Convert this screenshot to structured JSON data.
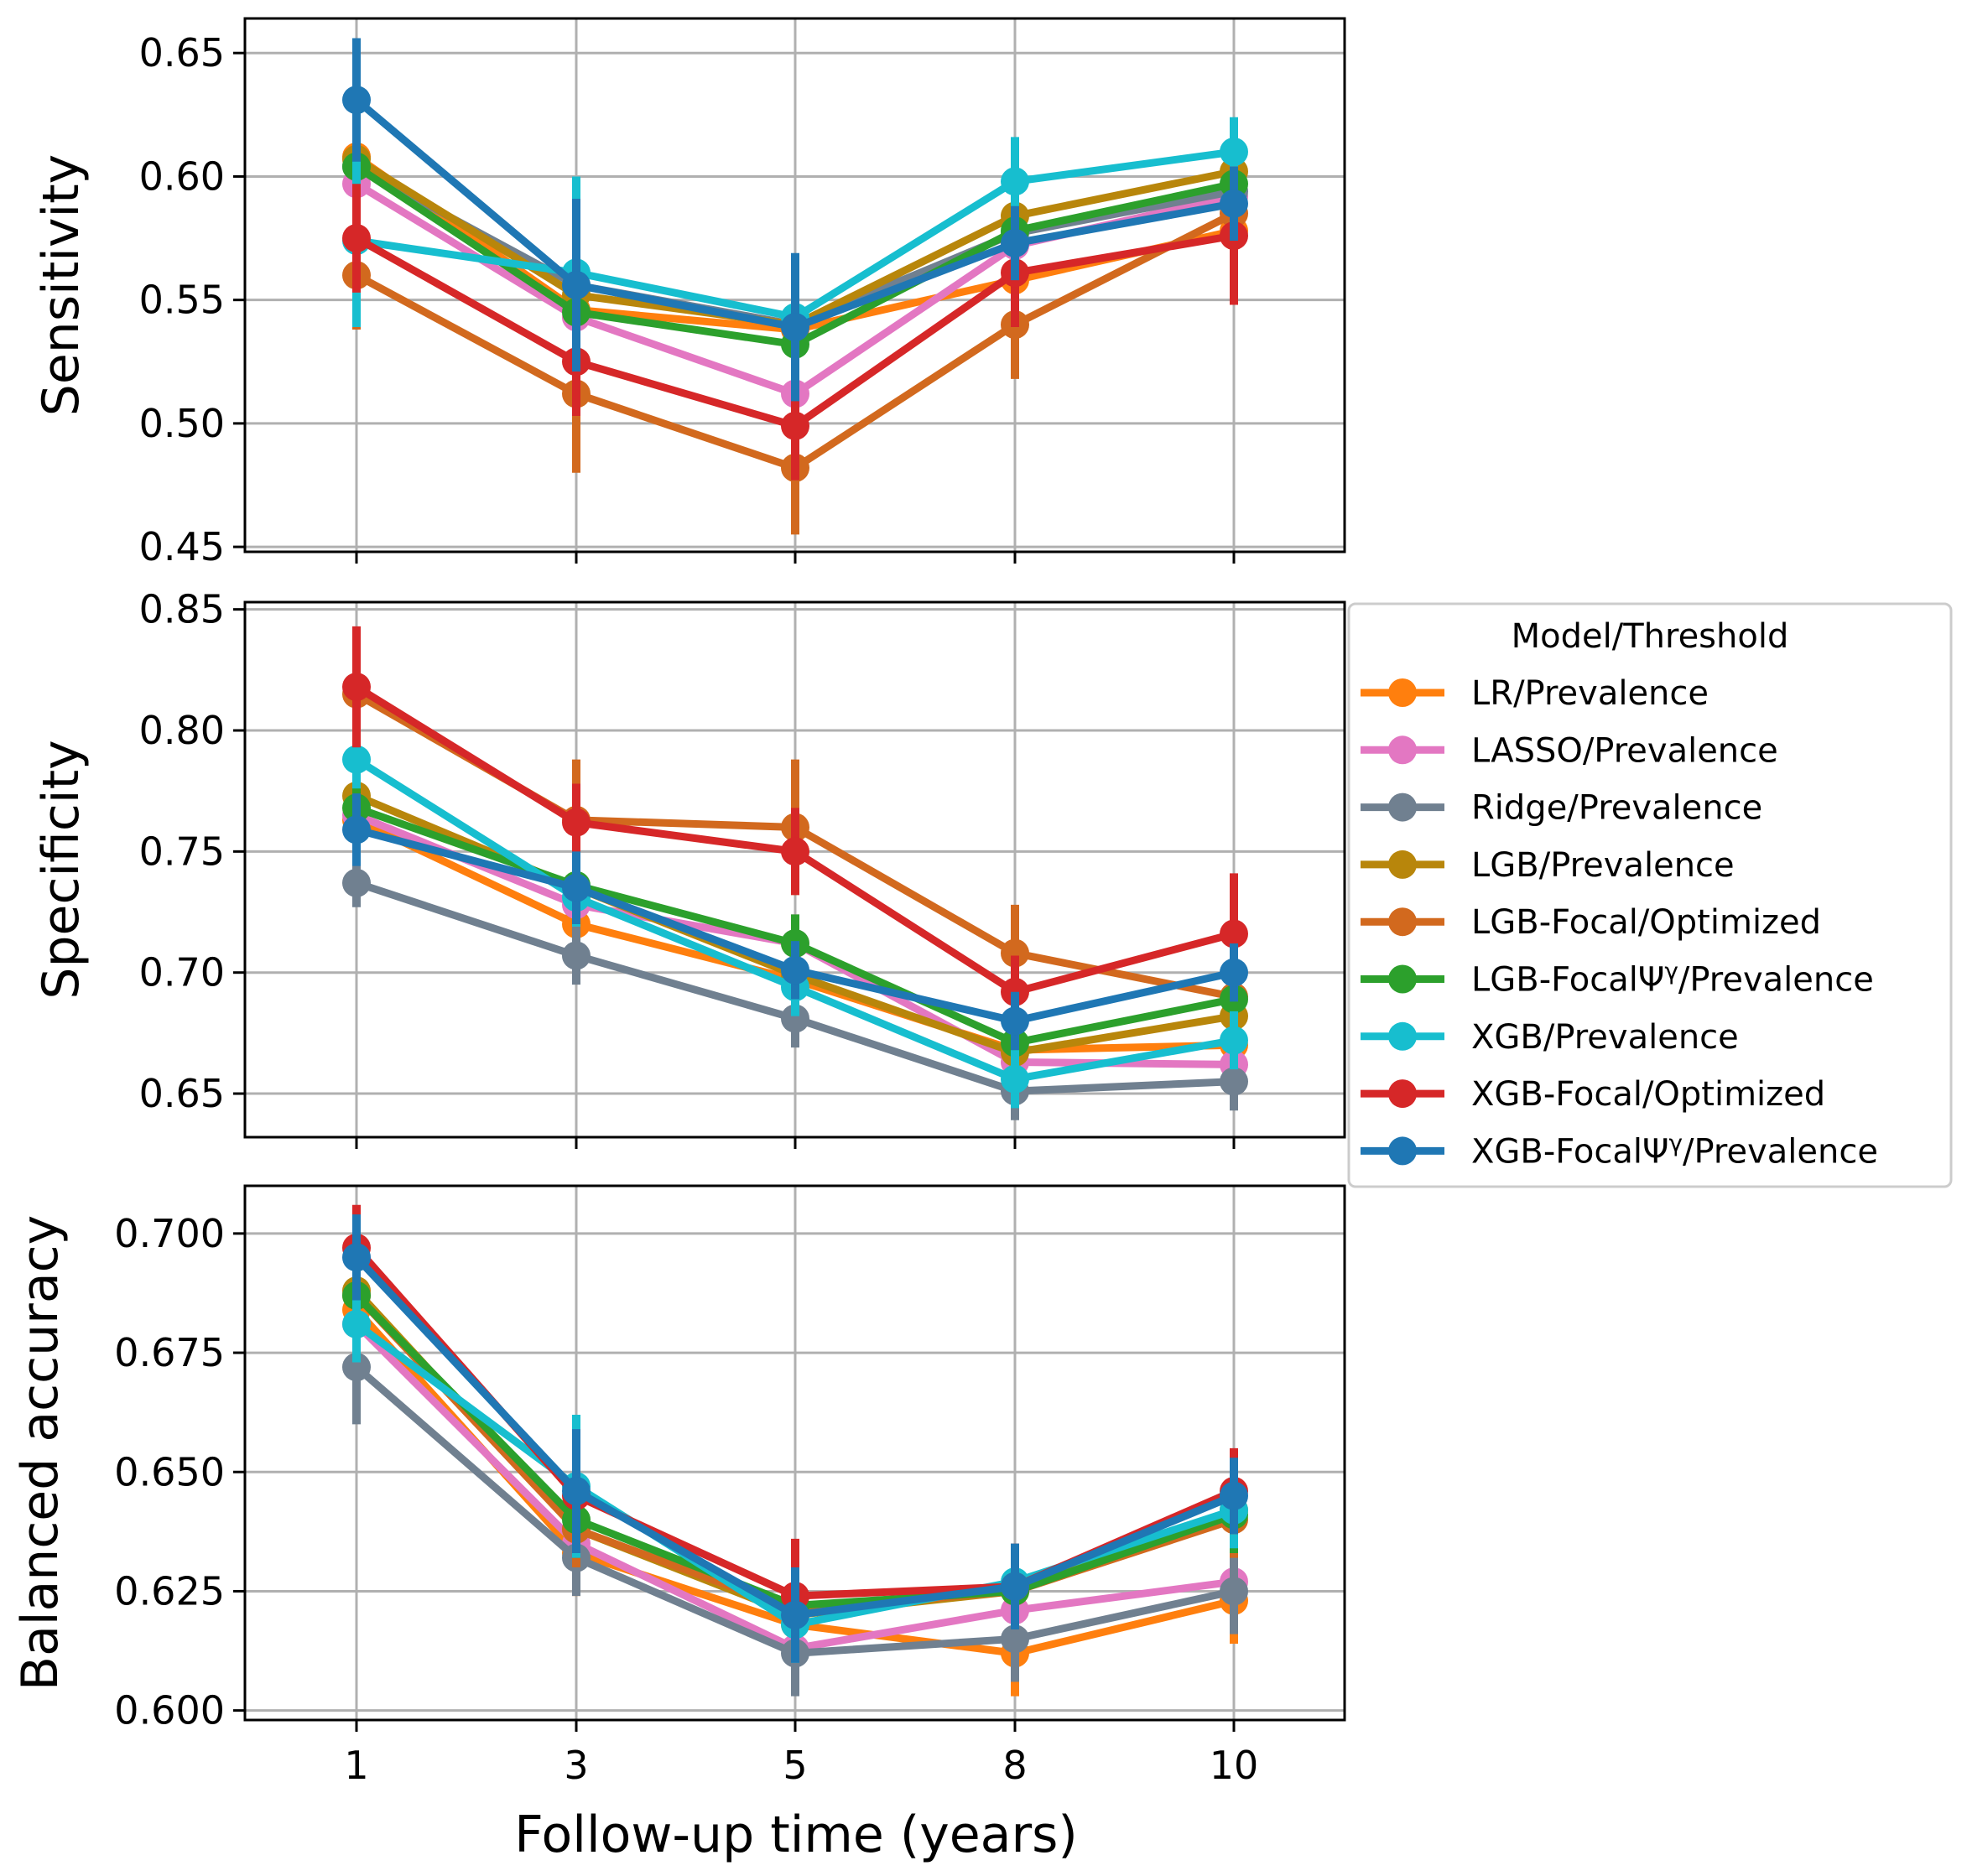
{
  "chart_data": {
    "type": "line",
    "xlabel": "Follow-up time (years)",
    "x": [
      1,
      3,
      5,
      8,
      10
    ],
    "x_tick_labels": [
      "1",
      "3",
      "5",
      "8",
      "10"
    ],
    "legend": {
      "title": "Model/Threshold",
      "placement": "right of middle panel",
      "entries": [
        "LR/Prevalence",
        "LASSO/Prevalence",
        "Ridge/Prevalence",
        "LGB/Prevalence",
        "LGB-Focal/Optimized",
        "LGB-FocalΨ^γ/Prevalence",
        "XGB/Prevalence",
        "XGB-Focal/Optimized",
        "XGB-FocalΨ^γ/Prevalence"
      ]
    },
    "series_styles": [
      {
        "name": "LR/Prevalence",
        "color": "#ff7f0e"
      },
      {
        "name": "LASSO/Prevalence",
        "color": "#e377c2"
      },
      {
        "name": "Ridge/Prevalence",
        "color": "#708090"
      },
      {
        "name": "LGB/Prevalence",
        "color": "#b8860b"
      },
      {
        "name": "LGB-Focal/Optimized",
        "color": "#d2691e"
      },
      {
        "name": "LGB-FocalΨ^γ/Prevalence",
        "color": "#2ca02c"
      },
      {
        "name": "XGB/Prevalence",
        "color": "#17becf"
      },
      {
        "name": "XGB-Focal/Optimized",
        "color": "#d62728"
      },
      {
        "name": "XGB-FocalΨ^γ/Prevalence",
        "color": "#1f77b4"
      }
    ],
    "panels": [
      {
        "ylabel": "Sensitivity",
        "ylim": [
          0.448,
          0.664
        ],
        "yticks": [
          0.45,
          0.5,
          0.55,
          0.6,
          0.65
        ],
        "ytick_labels": [
          "0.45",
          "0.50",
          "0.55",
          "0.60",
          "0.65"
        ],
        "grid": true,
        "series": [
          {
            "name": "LR/Prevalence",
            "values": [
              0.608,
              0.546,
              0.538,
              0.558,
              0.578
            ],
            "err": [
              0.012,
              0.012,
              0.012,
              0.012,
              0.012
            ]
          },
          {
            "name": "LASSO/Prevalence",
            "values": [
              0.597,
              0.543,
              0.512,
              0.572,
              0.592
            ],
            "err": [
              0.012,
              0.012,
              0.012,
              0.012,
              0.012
            ]
          },
          {
            "name": "Ridge/Prevalence",
            "values": [
              0.604,
              0.556,
              0.54,
              0.577,
              0.594
            ],
            "err": [
              0.012,
              0.012,
              0.012,
              0.012,
              0.012
            ]
          },
          {
            "name": "LGB/Prevalence",
            "values": [
              0.607,
              0.552,
              0.54,
              0.584,
              0.602
            ],
            "err": [
              0.012,
              0.012,
              0.012,
              0.012,
              0.012
            ]
          },
          {
            "name": "LGB-Focal/Optimized",
            "values": [
              0.56,
              0.512,
              0.482,
              0.54,
              0.585
            ],
            "err": [
              0.022,
              0.032,
              0.027,
              0.022,
              0.015
            ]
          },
          {
            "name": "LGB-FocalΨ^γ/Prevalence",
            "values": [
              0.604,
              0.545,
              0.532,
              0.578,
              0.597
            ],
            "err": [
              0.012,
              0.012,
              0.012,
              0.012,
              0.012
            ]
          },
          {
            "name": "XGB/Prevalence",
            "values": [
              0.574,
              0.561,
              0.543,
              0.598,
              0.61
            ],
            "err": [
              0.035,
              0.039,
              0.016,
              0.018,
              0.014
            ]
          },
          {
            "name": "XGB-Focal/Optimized",
            "values": [
              0.575,
              0.525,
              0.499,
              0.561,
              0.576
            ],
            "err": [
              0.022,
              0.022,
              0.022,
              0.022,
              0.028
            ]
          },
          {
            "name": "XGB-FocalΨ^γ/Prevalence",
            "values": [
              0.631,
              0.556,
              0.539,
              0.573,
              0.589
            ],
            "err": [
              0.025,
              0.035,
              0.03,
              0.015,
              0.015
            ]
          }
        ]
      },
      {
        "ylabel": "Specificity",
        "ylim": [
          0.632,
          0.853
        ],
        "yticks": [
          0.65,
          0.7,
          0.75,
          0.8,
          0.85
        ],
        "ytick_labels": [
          "0.65",
          "0.70",
          "0.75",
          "0.80",
          "0.85"
        ],
        "grid": true,
        "series": [
          {
            "name": "LR/Prevalence",
            "values": [
              0.763,
              0.72,
              0.697,
              0.668,
              0.67
            ],
            "err": [
              0.012,
              0.012,
              0.012,
              0.012,
              0.012
            ]
          },
          {
            "name": "LASSO/Prevalence",
            "values": [
              0.765,
              0.728,
              0.712,
              0.663,
              0.662
            ],
            "err": [
              0.012,
              0.012,
              0.012,
              0.012,
              0.012
            ]
          },
          {
            "name": "Ridge/Prevalence",
            "values": [
              0.737,
              0.707,
              0.681,
              0.651,
              0.655
            ],
            "err": [
              0.01,
              0.012,
              0.012,
              0.012,
              0.012
            ]
          },
          {
            "name": "LGB/Prevalence",
            "values": [
              0.773,
              0.735,
              0.699,
              0.667,
              0.682
            ],
            "err": [
              0.012,
              0.012,
              0.012,
              0.012,
              0.012
            ]
          },
          {
            "name": "LGB-Focal/Optimized",
            "values": [
              0.815,
              0.763,
              0.76,
              0.708,
              0.69
            ],
            "err": [
              0.025,
              0.025,
              0.028,
              0.02,
              0.015
            ]
          },
          {
            "name": "LGB-FocalΨ^γ/Prevalence",
            "values": [
              0.768,
              0.736,
              0.712,
              0.671,
              0.689
            ],
            "err": [
              0.012,
              0.012,
              0.012,
              0.012,
              0.012
            ]
          },
          {
            "name": "XGB/Prevalence",
            "values": [
              0.788,
              0.731,
              0.694,
              0.656,
              0.672
            ],
            "err": [
              0.012,
              0.012,
              0.012,
              0.012,
              0.012
            ]
          },
          {
            "name": "XGB-Focal/Optimized",
            "values": [
              0.818,
              0.762,
              0.75,
              0.692,
              0.716
            ],
            "err": [
              0.025,
              0.016,
              0.018,
              0.015,
              0.025
            ]
          },
          {
            "name": "XGB-FocalΨ^γ/Prevalence",
            "values": [
              0.759,
              0.735,
              0.701,
              0.68,
              0.7
            ],
            "err": [
              0.015,
              0.015,
              0.012,
              0.012,
              0.012
            ]
          }
        ]
      },
      {
        "ylabel": "Balanced accuracy",
        "ylim": [
          0.598,
          0.71
        ],
        "yticks": [
          0.6,
          0.625,
          0.65,
          0.675,
          0.7
        ],
        "ytick_labels": [
          "0.600",
          "0.625",
          "0.650",
          "0.675",
          "0.700"
        ],
        "grid": true,
        "series": [
          {
            "name": "LR/Prevalence",
            "values": [
              0.684,
              0.633,
              0.618,
              0.612,
              0.623
            ],
            "err": [
              0.008,
              0.009,
              0.008,
              0.009,
              0.009
            ]
          },
          {
            "name": "LASSO/Prevalence",
            "values": [
              0.681,
              0.635,
              0.613,
              0.621,
              0.627
            ],
            "err": [
              0.008,
              0.008,
              0.008,
              0.008,
              0.008
            ]
          },
          {
            "name": "Ridge/Prevalence",
            "values": [
              0.672,
              0.632,
              0.612,
              0.615,
              0.625
            ],
            "err": [
              0.012,
              0.008,
              0.009,
              0.009,
              0.009
            ]
          },
          {
            "name": "LGB/Prevalence",
            "values": [
              0.688,
              0.638,
              0.62,
              0.625,
              0.642
            ],
            "err": [
              0.008,
              0.008,
              0.008,
              0.008,
              0.008
            ]
          },
          {
            "name": "LGB-Focal/Optimized",
            "values": [
              0.687,
              0.638,
              0.621,
              0.625,
              0.64
            ],
            "err": [
              0.008,
              0.008,
              0.008,
              0.008,
              0.008
            ]
          },
          {
            "name": "LGB-FocalΨ^γ/Prevalence",
            "values": [
              0.687,
              0.64,
              0.622,
              0.625,
              0.641
            ],
            "err": [
              0.008,
              0.008,
              0.008,
              0.008,
              0.008
            ]
          },
          {
            "name": "XGB/Prevalence",
            "values": [
              0.681,
              0.647,
              0.618,
              0.627,
              0.642
            ],
            "err": [
              0.008,
              0.015,
              0.008,
              0.008,
              0.008
            ]
          },
          {
            "name": "XGB-Focal/Optimized",
            "values": [
              0.697,
              0.645,
              0.624,
              0.626,
              0.646
            ],
            "err": [
              0.009,
              0.01,
              0.012,
              0.009,
              0.009
            ]
          },
          {
            "name": "XGB-FocalΨ^γ/Prevalence",
            "values": [
              0.695,
              0.646,
              0.62,
              0.626,
              0.645
            ],
            "err": [
              0.009,
              0.013,
              0.01,
              0.009,
              0.008
            ]
          }
        ]
      }
    ]
  }
}
